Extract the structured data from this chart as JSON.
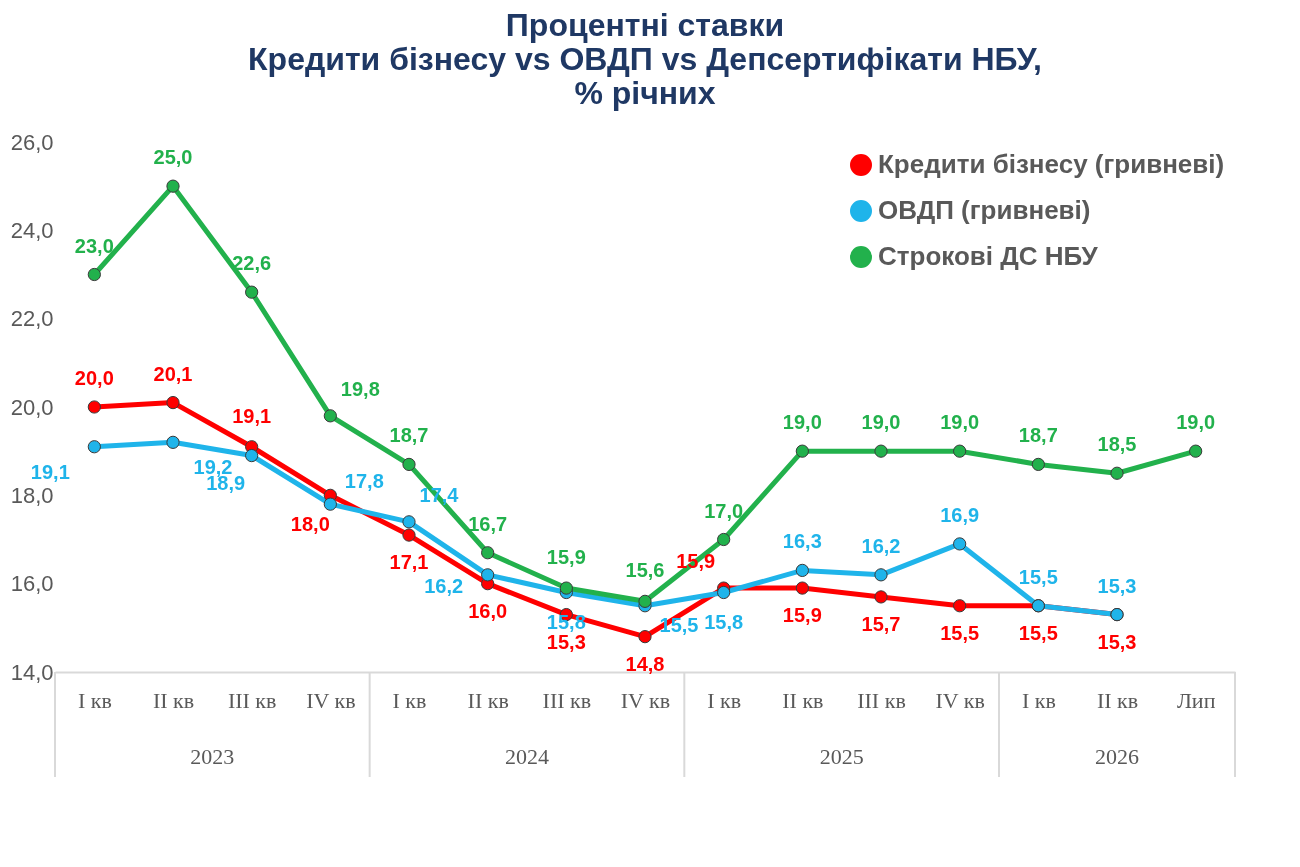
{
  "chart_data": {
    "type": "line",
    "title": "Процентні ставки\nКредити бізнесу vs ОВДП vs Депсертифікати НБУ,\n% річних",
    "categories": [
      "I кв",
      "II кв",
      "III кв",
      "IV кв",
      "I кв",
      "II кв",
      "III кв",
      "IV кв",
      "I кв",
      "II кв",
      "III кв",
      "IV кв",
      "I кв",
      "II кв",
      "Лип"
    ],
    "series": [
      {
        "name": "Кредити бізнесу (гривневі)",
        "color": "#ff0000",
        "values": [
          20.0,
          20.1,
          19.1,
          18.0,
          17.1,
          16.0,
          15.3,
          14.8,
          15.9,
          15.9,
          15.7,
          15.5,
          15.5,
          15.3,
          null
        ],
        "value_labels": [
          "20,0",
          "20,1",
          "19,1",
          "18,0",
          "17,1",
          "16,0",
          "15,3",
          "14,8",
          "15,9",
          "15,9",
          "15,7",
          "15,5",
          "15,5",
          "15,3",
          null
        ]
      },
      {
        "name": "ОВДП (гривневі)",
        "color": "#1fb4ea",
        "values": [
          19.1,
          19.2,
          18.9,
          17.8,
          17.4,
          16.2,
          15.8,
          15.5,
          15.8,
          16.3,
          16.2,
          16.9,
          15.5,
          15.3,
          null
        ],
        "value_labels": [
          "19,1",
          "19,2",
          "18,9",
          "17,8",
          "17,4",
          "16,2",
          "15,8",
          "15,5",
          "15,8",
          "16,3",
          "16,2",
          "16,9",
          "15,5",
          "15,3",
          null
        ]
      },
      {
        "name": "Строкові ДС НБУ",
        "color": "#22b14c",
        "values": [
          23.0,
          25.0,
          22.6,
          19.8,
          18.7,
          16.7,
          15.9,
          15.6,
          17.0,
          19.0,
          19.0,
          19.0,
          18.7,
          18.5,
          19.0
        ],
        "value_labels": [
          "23,0",
          "25,0",
          "22,6",
          "19,8",
          "18,7",
          "16,7",
          "15,9",
          "15,6",
          "17,0",
          "19,0",
          "19,0",
          "19,0",
          "18,7",
          "18,5",
          "19,0"
        ]
      }
    ],
    "ylim": [
      14,
      26
    ],
    "yticks": [
      {
        "value": 14,
        "label": "14,0"
      },
      {
        "value": 16,
        "label": "16,0"
      },
      {
        "value": 18,
        "label": "18,0"
      },
      {
        "value": 20,
        "label": "20,0"
      },
      {
        "value": 22,
        "label": "22,0"
      },
      {
        "value": 24,
        "label": "24,0"
      },
      {
        "value": 26,
        "label": "26,0"
      }
    ],
    "annotations": [
      "2023",
      "2024",
      "2025",
      "2026"
    ],
    "marker": "circle",
    "line_style": "solid",
    "grid": false,
    "legend": "top right"
  }
}
